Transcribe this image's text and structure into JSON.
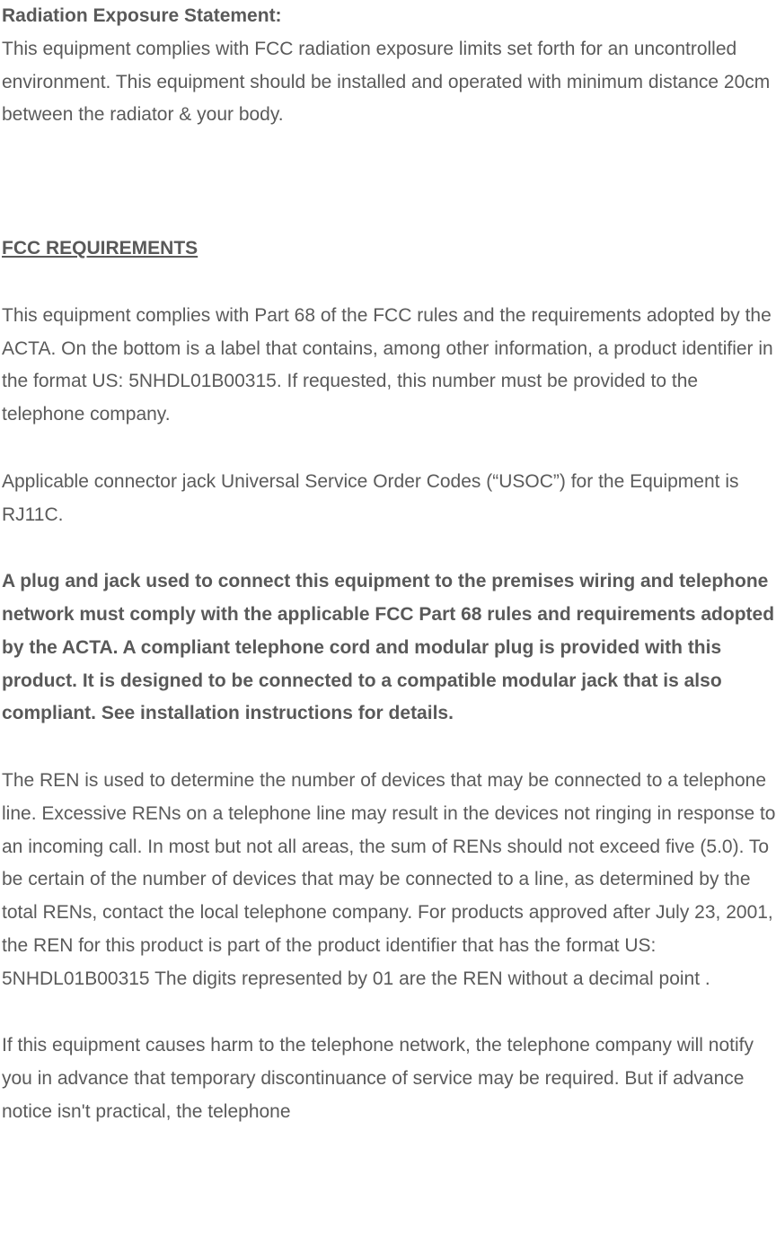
{
  "doc": {
    "text_color": "#5a5a5a",
    "bold_color": "#595959",
    "background_color": "#ffffff",
    "font_family": "Verdana",
    "font_size_pt": 16,
    "line_height": 1.75,
    "radiation_heading": "Radiation Exposure Statement:",
    "radiation_body": "This equipment complies with FCC radiation exposure limits set forth for an uncontrolled environment. This equipment should be installed and operated with minimum distance 20cm between the radiator & your body.",
    "fcc_heading": "FCC REQUIREMENTS",
    "fcc_p1": "This equipment complies with Part 68 of the FCC rules and the requirements adopted by the ACTA. On the bottom is a label that contains, among other information, a product identifier in the format US: 5NHDL01B00315. If requested, this number must be provided to the telephone company.",
    "fcc_p2": "Applicable connector jack Universal Service Order Codes (“USOC”) for the Equipment is RJ11C.",
    "fcc_p3_bold": "A plug and jack used to connect this equipment to the premises wiring and telephone network must comply with the applicable FCC Part 68 rules and requirements adopted by the ACTA. A compliant telephone cord and modular plug is provided with this product. It is designed to be connected to a compatible modular jack that is also compliant. See installation instructions for details.",
    "fcc_p4": "The REN is used to determine the number of devices that may be connected to a telephone line. Excessive RENs on a telephone line may result in the devices not ringing in response to an incoming call. In most but not all areas, the sum of RENs should not exceed five (5.0). To be certain of the number of devices that may be connected to a line, as determined by the total RENs, contact the local telephone company. For products approved after July 23, 2001, the REN for this product is part of the product identifier that has the format US: 5NHDL01B00315 The digits represented by 01 are the REN without a decimal point .",
    "fcc_p5": "If this equipment causes harm to the telephone network, the telephone company will notify you in advance that temporary discontinuance of service may be required. But if advance notice isn't practical, the telephone"
  }
}
